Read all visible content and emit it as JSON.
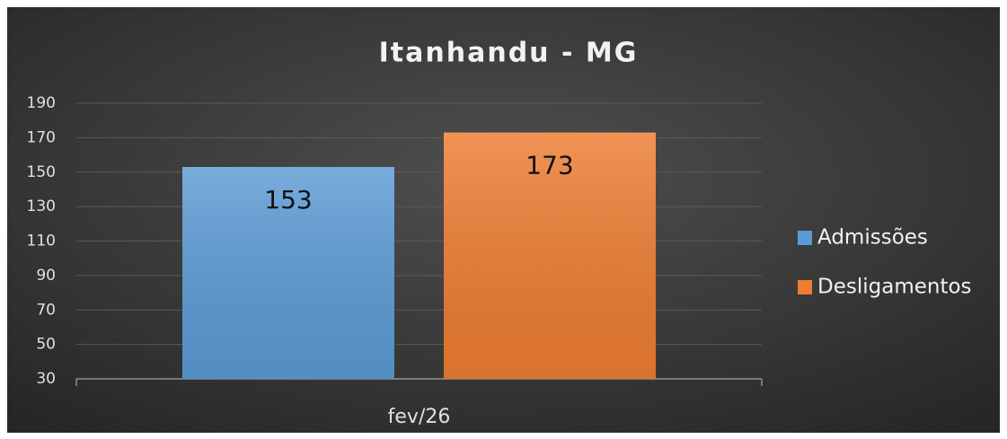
{
  "chart_data": {
    "type": "bar",
    "title": "Itanhandu - MG",
    "categories": [
      "fev/26"
    ],
    "series": [
      {
        "name": "Admissões",
        "color": "#5b9bd5",
        "values": [
          153
        ]
      },
      {
        "name": "Desligamentos",
        "color": "#ed7d31",
        "values": [
          173
        ]
      }
    ],
    "ylim": [
      30,
      190
    ],
    "yticks": [
      30,
      50,
      70,
      90,
      110,
      130,
      150,
      170,
      190
    ],
    "grid": true,
    "legend": "right"
  }
}
